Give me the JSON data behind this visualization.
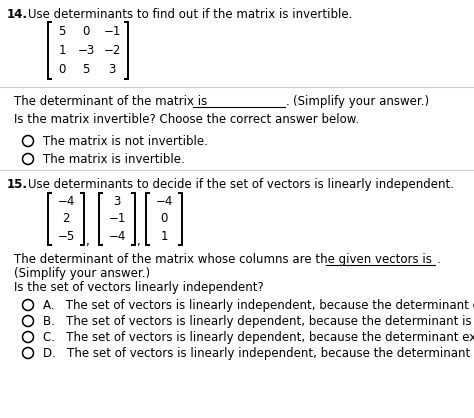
{
  "bg_color": "#ffffff",
  "q14_number": "14.",
  "q14_instruction": "Use determinants to find out if the matrix is invertible.",
  "q14_matrix_rows": [
    [
      "5",
      "0",
      "−1"
    ],
    [
      "1",
      "−3",
      "−2"
    ],
    [
      "0",
      "5",
      "3"
    ]
  ],
  "q14_det_text": "The determinant of the matrix is",
  "q14_simplify": "(Simplify your answer.)",
  "q14_choose": "Is the matrix invertible? Choose the correct answer below.",
  "q14_opt1": "The matrix is not invertible.",
  "q14_opt2": "The matrix is invertible.",
  "q15_number": "15.",
  "q15_instruction": "Use determinants to decide if the set of vectors is linearly independent.",
  "q15_vecs": [
    [
      "−4",
      "2",
      "−5"
    ],
    [
      "3",
      "−1",
      "−4"
    ],
    [
      "−4",
      "0",
      "1"
    ]
  ],
  "q15_det_text": "The determinant of the matrix whose columns are the given vectors is",
  "q15_det_text2": "(Simplify your answer.)",
  "q15_indep_q": "Is the set of vectors linearly independent?",
  "q15_optA": "A.   The set of vectors is linearly independent, because the determinant exists.",
  "q15_optB": "B.   The set of vectors is linearly dependent, because the determinant is not zero.",
  "q15_optC": "C.   The set of vectors is linearly dependent, because the determinant exists.",
  "q15_optD": "D.   The set of vectors is linearly independent, because the determinant is not zero.",
  "divider_color": "#cccccc",
  "text_color": "#000000",
  "font_size": 8.5,
  "matrix_font_size": 8.5
}
